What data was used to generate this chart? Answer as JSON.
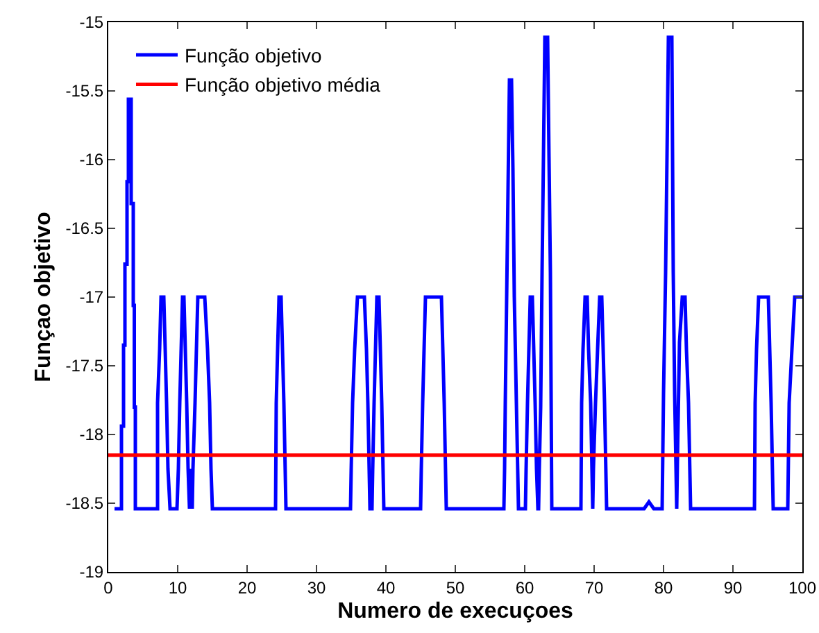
{
  "chart_data": {
    "type": "line",
    "xlabel": "Numero de execuçoes",
    "ylabel": "Funçao objetivo",
    "xlim": [
      0,
      100
    ],
    "xticks": [
      0,
      10,
      20,
      30,
      40,
      50,
      60,
      70,
      80,
      90,
      100
    ],
    "ylim": [
      -19,
      -15
    ],
    "yticks": [
      -19,
      -18.5,
      -18,
      -17.5,
      -17,
      -16.5,
      -16,
      -15.5,
      -15
    ],
    "grid": false,
    "legend": "top left",
    "marker": "none",
    "line_style": "solid",
    "series": [
      {
        "name": "Função objetivo",
        "color": "#0000ff",
        "x": [
          0.9,
          1.9,
          1.9,
          2.2,
          2.2,
          2.4,
          2.4,
          2.7,
          2.7,
          2.9,
          2.9,
          3.3,
          3.3,
          3.6,
          3.6,
          3.75,
          3.75,
          3.9,
          3.9,
          7.1,
          7.1,
          7.4,
          7.6,
          8.0,
          8.2,
          8.4,
          8.6,
          8.9,
          9.9,
          10.1,
          10.3,
          10.5,
          10.7,
          10.9,
          11.1,
          11.3,
          11.5,
          11.7,
          11.9,
          12.1,
          12.2,
          12.5,
          12.7,
          12.9,
          13.9,
          14.3,
          14.6,
          14.8,
          15.0,
          24.1,
          24.2,
          24.4,
          24.6,
          24.9,
          25.1,
          25.3,
          25.6,
          34.9,
          35.0,
          35.2,
          35.5,
          35.9,
          36.9,
          37.2,
          37.4,
          37.7,
          38.0,
          38.1,
          38.3,
          38.5,
          38.7,
          39.0,
          39.2,
          39.4,
          39.7,
          45.0,
          45.1,
          45.3,
          45.5,
          45.7,
          48.0,
          48.2,
          48.4,
          48.7,
          57.0,
          57.1,
          57.2,
          57.4,
          57.6,
          57.8,
          58.1,
          58.3,
          58.5,
          58.8,
          59.1,
          60.1,
          60.2,
          60.4,
          60.6,
          60.8,
          61.1,
          61.3,
          61.5,
          61.7,
          61.9,
          62.0,
          62.1,
          62.3,
          62.5,
          62.7,
          62.9,
          63.3,
          63.5,
          63.7,
          63.9,
          68.1,
          68.2,
          68.4,
          68.7,
          69.0,
          69.2,
          69.5,
          69.8,
          69.9,
          70.2,
          70.5,
          70.8,
          71.1,
          71.3,
          71.5,
          71.8,
          77.2,
          77.9,
          78.6,
          79.8,
          80.0,
          80.3,
          80.5,
          80.7,
          81.2,
          81.4,
          81.6,
          81.9,
          82.0,
          82.3,
          82.7,
          83.1,
          83.3,
          83.6,
          83.9,
          93.1,
          93.2,
          93.4,
          93.7,
          95.1,
          95.3,
          95.5,
          95.8,
          97.9,
          98.1,
          98.5,
          98.9,
          100
        ],
        "values": [
          -18.54,
          -18.54,
          -17.94,
          -17.94,
          -17.35,
          -17.35,
          -16.76,
          -16.76,
          -16.16,
          -16.16,
          -15.56,
          -15.56,
          -16.32,
          -16.32,
          -17.06,
          -17.06,
          -17.8,
          -17.8,
          -18.54,
          -18.54,
          -17.77,
          -17.38,
          -17.0,
          -17.0,
          -17.38,
          -17.77,
          -18.25,
          -18.54,
          -18.54,
          -18.25,
          -17.77,
          -17.38,
          -17.0,
          -17.0,
          -17.38,
          -17.77,
          -18.25,
          -18.54,
          -18.25,
          -18.54,
          -18.25,
          -17.77,
          -17.38,
          -17.0,
          -17.0,
          -17.38,
          -17.77,
          -18.25,
          -18.54,
          -18.54,
          -17.77,
          -17.38,
          -17.0,
          -17.0,
          -17.38,
          -17.77,
          -18.54,
          -18.54,
          -18.25,
          -17.77,
          -17.38,
          -17.0,
          -17.0,
          -17.38,
          -17.77,
          -18.54,
          -18.54,
          -18.25,
          -17.77,
          -17.38,
          -17.0,
          -17.0,
          -17.38,
          -17.77,
          -18.54,
          -18.54,
          -18.25,
          -17.77,
          -17.38,
          -17.0,
          -17.0,
          -17.38,
          -17.77,
          -18.54,
          -18.54,
          -18.25,
          -17.77,
          -17.0,
          -16.2,
          -15.42,
          -15.42,
          -16.06,
          -17.0,
          -17.77,
          -18.54,
          -18.54,
          -18.25,
          -17.77,
          -17.38,
          -17.0,
          -17.0,
          -17.38,
          -17.77,
          -18.25,
          -18.54,
          -18.54,
          -18.25,
          -17.8,
          -16.82,
          -15.98,
          -15.11,
          -15.11,
          -15.98,
          -16.82,
          -18.54,
          -18.54,
          -17.77,
          -17.38,
          -17.0,
          -17.0,
          -17.38,
          -17.77,
          -18.54,
          -18.25,
          -17.77,
          -17.38,
          -17.0,
          -17.0,
          -17.38,
          -17.77,
          -18.54,
          -18.54,
          -18.49,
          -18.54,
          -18.54,
          -17.7,
          -16.82,
          -15.98,
          -15.11,
          -15.11,
          -16.82,
          -17.7,
          -18.54,
          -18.2,
          -17.33,
          -17.0,
          -17.0,
          -17.38,
          -17.77,
          -18.54,
          -18.54,
          -17.77,
          -17.38,
          -17.0,
          -17.0,
          -17.38,
          -17.77,
          -18.54,
          -18.54,
          -17.77,
          -17.38,
          -17.0,
          -17.0
        ]
      },
      {
        "name": "Função objetivo média",
        "color": "#ff0000",
        "x": [
          0,
          100
        ],
        "values": [
          -18.15,
          -18.15
        ]
      }
    ]
  }
}
